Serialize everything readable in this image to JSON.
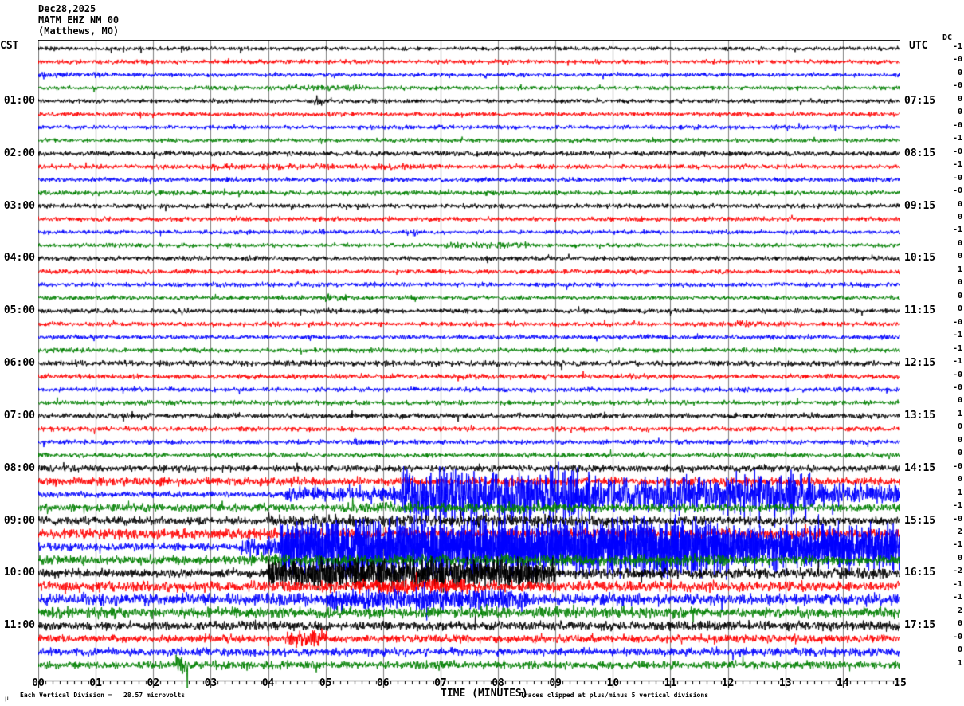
{
  "header": {
    "date": "Dec28,2025",
    "station": "MATM EHZ NM 00",
    "location": "(Matthews, MO)",
    "left_timezone": "CST",
    "right_timezone": "UTC",
    "dc_label": "DC"
  },
  "footer": {
    "corner_mark": "µ",
    "scale_note": "Each Vertical Division =   28.57 microvolts",
    "axis_title": "TIME (MINUTES)",
    "clip_note": "Traces clipped at plus/minus 5 vertical divisions"
  },
  "chart_data": {
    "type": "line",
    "subtype": "helicorder-seismogram",
    "title": "MATM EHZ NM 00 (Matthews, MO) Dec28,2025",
    "xlabel": "TIME (MINUTES)",
    "x_range_minutes": [
      0,
      15
    ],
    "x_tick_labels": [
      "00",
      "01",
      "02",
      "03",
      "04",
      "05",
      "06",
      "07",
      "08",
      "09",
      "10",
      "11",
      "12",
      "13",
      "14",
      "15"
    ],
    "minor_ticks_per_minute": 8,
    "grid": "vertical gray line at each minute",
    "rows_count": 48,
    "row_duration_minutes": 15,
    "clip_divisions": 5,
    "microvolts_per_division": 28.57,
    "color_cycle": [
      "black",
      "red",
      "blue",
      "green"
    ],
    "colors": {
      "black": "#000000",
      "red": "#ff0000",
      "blue": "#0000ff",
      "green": "#008000",
      "grid": "#808080"
    },
    "left_time_labels": [
      "01:00",
      "02:00",
      "03:00",
      "04:00",
      "05:00",
      "06:00",
      "07:00",
      "08:00",
      "09:00",
      "10:00",
      "11:00"
    ],
    "right_time_labels": [
      "07:15",
      "08:15",
      "09:15",
      "10:15",
      "11:15",
      "12:15",
      "13:15",
      "14:15",
      "15:15",
      "16:15",
      "17:15"
    ],
    "amplitude_segments_units": "[start_minute, end_minute, half_amplitude_px, optional_density]",
    "rows": [
      {
        "cst": "00:00",
        "color": "black",
        "dc": "-1",
        "segments": [
          [
            0,
            15,
            3.2
          ]
        ]
      },
      {
        "cst": "00:15",
        "color": "red",
        "dc": "-0",
        "segments": [
          [
            0,
            15,
            3.4
          ]
        ]
      },
      {
        "cst": "00:30",
        "color": "blue",
        "dc": "0",
        "segments": [
          [
            0,
            1.2,
            4.6
          ],
          [
            1.2,
            15,
            3.3
          ]
        ]
      },
      {
        "cst": "00:45",
        "color": "green",
        "dc": "-0",
        "segments": [
          [
            0,
            4,
            3.1
          ],
          [
            4,
            5.6,
            4.6
          ],
          [
            5.6,
            15,
            3.2
          ]
        ]
      },
      {
        "cst": "01:00",
        "color": "black",
        "dc": "0",
        "segments": [
          [
            0,
            4.8,
            3.3
          ],
          [
            4.8,
            5.1,
            7
          ],
          [
            5.1,
            15,
            3.3
          ]
        ]
      },
      {
        "cst": "01:15",
        "color": "red",
        "dc": "0",
        "segments": [
          [
            0,
            15,
            3.3
          ]
        ]
      },
      {
        "cst": "01:30",
        "color": "blue",
        "dc": "-0",
        "segments": [
          [
            0,
            15,
            3.3
          ]
        ]
      },
      {
        "cst": "01:45",
        "color": "green",
        "dc": "-1",
        "segments": [
          [
            0,
            15,
            3.1
          ]
        ]
      },
      {
        "cst": "02:00",
        "color": "black",
        "dc": "-0",
        "segments": [
          [
            0,
            15,
            3.9
          ]
        ]
      },
      {
        "cst": "02:15",
        "color": "red",
        "dc": "-1",
        "segments": [
          [
            0,
            3,
            3.6
          ],
          [
            3,
            7,
            4.6
          ],
          [
            7,
            15,
            3.6
          ]
        ]
      },
      {
        "cst": "02:30",
        "color": "blue",
        "dc": "-0",
        "segments": [
          [
            0,
            15,
            3.7
          ]
        ]
      },
      {
        "cst": "02:45",
        "color": "green",
        "dc": "-0",
        "segments": [
          [
            0,
            15,
            3.7
          ]
        ]
      },
      {
        "cst": "03:00",
        "color": "black",
        "dc": "0",
        "segments": [
          [
            0,
            15,
            3.7
          ]
        ]
      },
      {
        "cst": "03:15",
        "color": "red",
        "dc": "0",
        "segments": [
          [
            0,
            15,
            3.5
          ]
        ]
      },
      {
        "cst": "03:30",
        "color": "blue",
        "dc": "-1",
        "segments": [
          [
            0,
            6.4,
            3.3
          ],
          [
            6.4,
            6.6,
            6
          ],
          [
            6.6,
            15,
            3.3
          ]
        ]
      },
      {
        "cst": "03:45",
        "color": "green",
        "dc": "0",
        "segments": [
          [
            0,
            7,
            3.3
          ],
          [
            7,
            8.6,
            5
          ],
          [
            8.6,
            15,
            3.3
          ]
        ]
      },
      {
        "cst": "04:00",
        "color": "black",
        "dc": "0",
        "segments": [
          [
            0,
            15,
            3.6
          ]
        ]
      },
      {
        "cst": "04:15",
        "color": "red",
        "dc": "1",
        "segments": [
          [
            0,
            15,
            3.6
          ]
        ]
      },
      {
        "cst": "04:30",
        "color": "blue",
        "dc": "0",
        "segments": [
          [
            0,
            15,
            3.6
          ]
        ]
      },
      {
        "cst": "04:45",
        "color": "green",
        "dc": "0",
        "segments": [
          [
            0,
            5,
            3.3
          ],
          [
            5,
            5.5,
            6
          ],
          [
            5.5,
            15,
            3.3
          ]
        ]
      },
      {
        "cst": "05:00",
        "color": "black",
        "dc": "0",
        "segments": [
          [
            0,
            15,
            3.7
          ]
        ]
      },
      {
        "cst": "05:15",
        "color": "red",
        "dc": "-0",
        "segments": [
          [
            0,
            12,
            3.5
          ],
          [
            12,
            12.6,
            6.5
          ],
          [
            12.6,
            15,
            3.5
          ]
        ]
      },
      {
        "cst": "05:30",
        "color": "blue",
        "dc": "-1",
        "segments": [
          [
            0,
            15,
            3.6
          ]
        ]
      },
      {
        "cst": "05:45",
        "color": "green",
        "dc": "-1",
        "segments": [
          [
            0,
            15,
            3.6
          ]
        ]
      },
      {
        "cst": "06:00",
        "color": "black",
        "dc": "-1",
        "segments": [
          [
            0,
            15,
            4.3
          ]
        ]
      },
      {
        "cst": "06:15",
        "color": "red",
        "dc": "-0",
        "segments": [
          [
            0,
            15,
            4.1
          ]
        ]
      },
      {
        "cst": "06:30",
        "color": "blue",
        "dc": "-0",
        "segments": [
          [
            0,
            15,
            3.7
          ]
        ]
      },
      {
        "cst": "06:45",
        "color": "green",
        "dc": "0",
        "segments": [
          [
            0,
            15,
            3.7
          ]
        ]
      },
      {
        "cst": "07:00",
        "color": "black",
        "dc": "1",
        "segments": [
          [
            0,
            15,
            4.1
          ]
        ]
      },
      {
        "cst": "07:15",
        "color": "red",
        "dc": "0",
        "segments": [
          [
            0,
            15,
            3.7
          ]
        ]
      },
      {
        "cst": "07:30",
        "color": "blue",
        "dc": "0",
        "segments": [
          [
            0,
            5.5,
            3.7
          ],
          [
            5.5,
            5.8,
            6.5
          ],
          [
            5.8,
            15,
            3.7
          ]
        ]
      },
      {
        "cst": "07:45",
        "color": "green",
        "dc": "0",
        "segments": [
          [
            0,
            15,
            3.7
          ]
        ]
      },
      {
        "cst": "08:00",
        "color": "black",
        "dc": "-0",
        "segments": [
          [
            0,
            15,
            5.2
          ]
        ]
      },
      {
        "cst": "08:15",
        "color": "red",
        "dc": "0",
        "segments": [
          [
            0,
            15,
            6.6
          ]
        ]
      },
      {
        "cst": "08:30",
        "color": "blue",
        "dc": "1",
        "segments": [
          [
            0,
            4.3,
            4.6
          ],
          [
            4.3,
            6.3,
            12,
            1.2
          ],
          [
            6.3,
            9.6,
            40,
            1.6
          ],
          [
            9.6,
            12,
            26,
            1.3
          ],
          [
            12,
            13.5,
            34,
            1.5
          ],
          [
            13.5,
            15,
            18,
            1.2
          ]
        ]
      },
      {
        "cst": "08:45",
        "color": "green",
        "dc": "-1",
        "segments": [
          [
            0,
            5,
            6.2
          ],
          [
            5,
            9,
            8.2
          ],
          [
            9,
            15,
            6.2
          ]
        ]
      },
      {
        "cst": "09:00",
        "color": "black",
        "dc": "-0",
        "segments": [
          [
            0,
            4,
            6.2
          ],
          [
            4,
            10,
            9
          ],
          [
            10,
            15,
            7
          ]
        ]
      },
      {
        "cst": "09:15",
        "color": "red",
        "dc": "2",
        "segments": [
          [
            0,
            15,
            8.2
          ]
        ]
      },
      {
        "cst": "09:30",
        "color": "blue",
        "dc": "-1",
        "segments": [
          [
            0,
            3.5,
            6.2
          ],
          [
            3.5,
            4.2,
            14,
            1.5
          ],
          [
            4.2,
            12,
            41,
            3
          ],
          [
            12,
            15,
            33,
            2.6
          ]
        ]
      },
      {
        "cst": "09:45",
        "color": "green",
        "dc": "0",
        "segments": [
          [
            0,
            4,
            7
          ],
          [
            4,
            12,
            9
          ],
          [
            12,
            15,
            7.2
          ]
        ]
      },
      {
        "cst": "10:00",
        "color": "black",
        "dc": "-2",
        "segments": [
          [
            0,
            4,
            7.2
          ],
          [
            4,
            9,
            22,
            2
          ],
          [
            9,
            15,
            8.2
          ]
        ]
      },
      {
        "cst": "10:15",
        "color": "red",
        "dc": "-1",
        "segments": [
          [
            0,
            5.5,
            8.2
          ],
          [
            5.5,
            7.5,
            12,
            1.3
          ],
          [
            7.5,
            15,
            8.2
          ]
        ]
      },
      {
        "cst": "10:30",
        "color": "blue",
        "dc": "-1",
        "segments": [
          [
            0,
            5,
            9
          ],
          [
            5,
            8.5,
            16,
            1.5
          ],
          [
            8.5,
            15,
            9.2
          ]
        ]
      },
      {
        "cst": "10:45",
        "color": "green",
        "dc": "2",
        "segments": [
          [
            0,
            15,
            8.2
          ]
        ]
      },
      {
        "cst": "11:00",
        "color": "black",
        "dc": "0",
        "segments": [
          [
            0,
            15,
            7.2
          ]
        ]
      },
      {
        "cst": "11:15",
        "color": "red",
        "dc": "-0",
        "segments": [
          [
            0,
            4.3,
            6.2
          ],
          [
            4.3,
            5,
            13,
            1.3
          ],
          [
            5,
            15,
            6.2
          ]
        ]
      },
      {
        "cst": "11:30",
        "color": "blue",
        "dc": "0",
        "segments": [
          [
            0,
            15,
            6.2
          ]
        ]
      },
      {
        "cst": "11:45",
        "color": "green",
        "dc": "1",
        "segments": [
          [
            0,
            2.4,
            6.2
          ],
          [
            2.4,
            2.6,
            20
          ],
          [
            2.6,
            15,
            6.2
          ]
        ]
      }
    ]
  }
}
